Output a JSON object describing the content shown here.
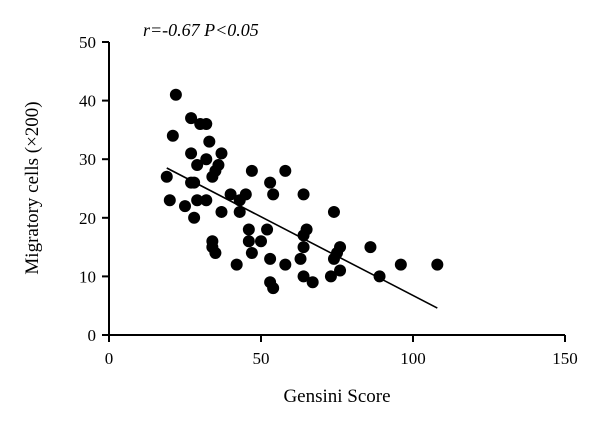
{
  "chart_data": {
    "type": "scatter",
    "annotation": "r=-0.67 P<0.05",
    "xlabel": "Gensini Score",
    "ylabel": "Migratory cells (×200)",
    "xlim": [
      0,
      150
    ],
    "ylim": [
      0,
      50
    ],
    "xticks": [
      0,
      50,
      100,
      150
    ],
    "yticks": [
      0,
      10,
      20,
      30,
      40,
      50
    ],
    "grid": false,
    "points": [
      [
        22,
        41
      ],
      [
        27,
        37
      ],
      [
        30,
        36
      ],
      [
        32,
        36
      ],
      [
        21,
        34
      ],
      [
        33,
        33
      ],
      [
        27,
        31
      ],
      [
        32,
        30
      ],
      [
        37,
        31
      ],
      [
        29,
        29
      ],
      [
        36,
        29
      ],
      [
        19,
        27
      ],
      [
        34,
        27
      ],
      [
        35,
        28
      ],
      [
        47,
        28
      ],
      [
        58,
        28
      ],
      [
        27,
        26
      ],
      [
        28,
        26
      ],
      [
        53,
        26
      ],
      [
        40,
        24
      ],
      [
        45,
        24
      ],
      [
        54,
        24
      ],
      [
        64,
        24
      ],
      [
        20,
        23
      ],
      [
        29,
        23
      ],
      [
        32,
        23
      ],
      [
        43,
        23
      ],
      [
        25,
        22
      ],
      [
        28,
        20
      ],
      [
        37,
        21
      ],
      [
        43,
        21
      ],
      [
        74,
        21
      ],
      [
        46,
        18
      ],
      [
        52,
        18
      ],
      [
        65,
        18
      ],
      [
        34,
        16
      ],
      [
        46,
        16
      ],
      [
        50,
        16
      ],
      [
        64,
        17
      ],
      [
        34,
        15
      ],
      [
        35,
        14
      ],
      [
        47,
        14
      ],
      [
        64,
        15
      ],
      [
        76,
        15
      ],
      [
        86,
        15
      ],
      [
        53,
        13
      ],
      [
        63,
        13
      ],
      [
        74,
        13
      ],
      [
        75,
        14
      ],
      [
        42,
        12
      ],
      [
        58,
        12
      ],
      [
        96,
        12
      ],
      [
        108,
        12
      ],
      [
        64,
        10
      ],
      [
        73,
        10
      ],
      [
        76,
        11
      ],
      [
        89,
        10
      ],
      [
        53,
        9
      ],
      [
        67,
        9
      ],
      [
        54,
        8
      ]
    ],
    "fit_line": {
      "x": [
        19,
        108
      ],
      "y": [
        28.5,
        4.6
      ]
    }
  }
}
